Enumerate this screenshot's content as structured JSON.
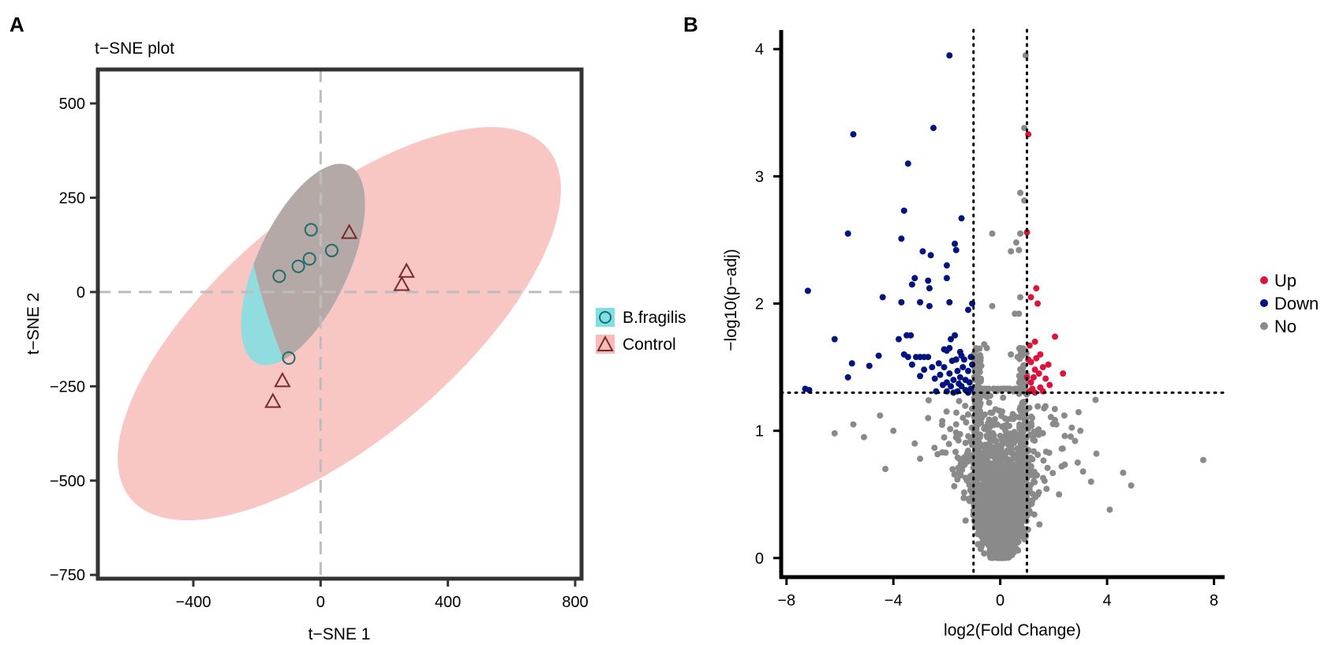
{
  "panel_a": {
    "letter": "A"
  },
  "panel_b": {
    "letter": "B"
  },
  "chart_data": [
    {
      "type": "scatter",
      "title": "t−SNE plot",
      "xlabel": "t−SNE 1",
      "ylabel": "t−SNE 2",
      "xlim": [
        -700,
        820
      ],
      "ylim": [
        -760,
        590
      ],
      "xticks": [
        -400,
        0,
        400,
        800
      ],
      "xtick_labels": [
        "−400",
        "0",
        "400",
        "800"
      ],
      "yticks": [
        500,
        250,
        0,
        -250,
        -500,
        -750
      ],
      "ytick_labels": [
        "500",
        "250",
        "0",
        "−250",
        "−500",
        "−750"
      ],
      "reference_lines": {
        "x": 0,
        "y": 0
      },
      "legend": {
        "position": "right",
        "entries": [
          "B.fragilis",
          "Control"
        ]
      },
      "series": [
        {
          "name": "B.fragilis",
          "marker": "circle",
          "color": "#1f6b6b",
          "ellipse_color": "#7fdfe3",
          "points": [
            [
              -30,
              165
            ],
            [
              -130,
              42
            ],
            [
              -70,
              68
            ],
            [
              -35,
              88
            ],
            [
              35,
              110
            ],
            [
              -100,
              -175
            ]
          ]
        },
        {
          "name": "Control",
          "marker": "triangle",
          "color": "#7a2a2a",
          "ellipse_color": "#f7bcb8",
          "points": [
            [
              90,
              158
            ],
            [
              270,
              55
            ],
            [
              255,
              20
            ],
            [
              -120,
              -235
            ],
            [
              -150,
              -290
            ]
          ]
        }
      ]
    },
    {
      "type": "scatter",
      "xlabel": "log2(Fold Change)",
      "ylabel": "−log10(p−adj)",
      "xlim": [
        -8.2,
        8.4
      ],
      "ylim": [
        -0.15,
        4.15
      ],
      "xticks": [
        -8,
        -4,
        0,
        4,
        8
      ],
      "xtick_labels": [
        "−8",
        "−4",
        "0",
        "4",
        "8"
      ],
      "yticks": [
        0,
        1,
        2,
        3,
        4
      ],
      "ytick_labels": [
        "0",
        "1",
        "2",
        "3",
        "4"
      ],
      "thresholds": {
        "fold_change": [
          -1,
          1
        ],
        "neg_log10_padj": 1.3
      },
      "legend": {
        "position": "right",
        "entries": [
          "Up",
          "Down",
          "No"
        ]
      },
      "colors": {
        "Up": "#dc143c",
        "Down": "#00137f",
        "No": "#8a8a8a"
      },
      "up_points": [
        [
          1.05,
          3.33
        ],
        [
          1.0,
          2.56
        ],
        [
          1.35,
          2.12
        ],
        [
          1.15,
          2.05
        ],
        [
          1.4,
          2.0
        ],
        [
          2.05,
          1.74
        ],
        [
          1.3,
          1.7
        ],
        [
          1.1,
          1.67
        ],
        [
          1.5,
          1.6
        ],
        [
          1.35,
          1.57
        ],
        [
          1.15,
          1.54
        ],
        [
          1.8,
          1.52
        ],
        [
          1.6,
          1.5
        ],
        [
          2.35,
          1.45
        ],
        [
          1.3,
          1.48
        ],
        [
          1.45,
          1.45
        ],
        [
          1.25,
          1.42
        ],
        [
          1.7,
          1.41
        ],
        [
          1.15,
          1.38
        ],
        [
          1.85,
          1.36
        ],
        [
          1.5,
          1.34
        ],
        [
          1.2,
          1.33
        ],
        [
          1.1,
          1.31
        ],
        [
          1.3,
          1.3
        ],
        [
          1.6,
          1.31
        ],
        [
          1.0,
          1.42
        ],
        [
          1.05,
          1.56
        ]
      ],
      "down_points": [
        [
          -1.9,
          3.95
        ],
        [
          -5.5,
          3.33
        ],
        [
          -2.5,
          3.38
        ],
        [
          -3.45,
          3.1
        ],
        [
          -1.45,
          2.67
        ],
        [
          -3.6,
          2.73
        ],
        [
          -5.7,
          2.55
        ],
        [
          -3.7,
          2.51
        ],
        [
          -1.7,
          2.47
        ],
        [
          -1.65,
          2.42
        ],
        [
          -2.9,
          2.41
        ],
        [
          -2.6,
          2.38
        ],
        [
          -2.0,
          2.3
        ],
        [
          -3.2,
          2.2
        ],
        [
          -2.7,
          2.18
        ],
        [
          -2.0,
          2.2
        ],
        [
          -3.3,
          2.15
        ],
        [
          -2.65,
          2.12
        ],
        [
          -4.4,
          2.05
        ],
        [
          -7.2,
          2.1
        ],
        [
          -3.7,
          2.01
        ],
        [
          -1.9,
          2.01
        ],
        [
          -3.0,
          2.01
        ],
        [
          -1.05,
          2.0
        ],
        [
          -2.65,
          1.98
        ],
        [
          -1.2,
          1.95
        ],
        [
          -6.2,
          1.72
        ],
        [
          -3.5,
          1.75
        ],
        [
          -3.35,
          1.75
        ],
        [
          -1.7,
          1.75
        ],
        [
          -1.85,
          1.72
        ],
        [
          -3.8,
          1.72
        ],
        [
          -1.9,
          1.65
        ],
        [
          -2.1,
          1.64
        ],
        [
          -2.0,
          1.63
        ],
        [
          -1.5,
          1.62
        ],
        [
          -1.45,
          1.59
        ],
        [
          -3.6,
          1.6
        ],
        [
          -1.1,
          1.58
        ],
        [
          -2.7,
          1.58
        ],
        [
          -3.45,
          1.58
        ],
        [
          -4.55,
          1.59
        ],
        [
          -3.0,
          1.58
        ],
        [
          -3.15,
          1.58
        ],
        [
          -2.85,
          1.58
        ],
        [
          -1.35,
          1.56
        ],
        [
          -1.65,
          1.56
        ],
        [
          -1.8,
          1.55
        ],
        [
          -5.55,
          1.53
        ],
        [
          -4.9,
          1.51
        ],
        [
          -2.3,
          1.53
        ],
        [
          -3.3,
          1.52
        ],
        [
          -1.05,
          1.52
        ],
        [
          -2.55,
          1.5
        ],
        [
          -2.1,
          1.5
        ],
        [
          -1.4,
          1.5
        ],
        [
          -2.85,
          1.48
        ],
        [
          -1.6,
          1.47
        ],
        [
          -1.2,
          1.47
        ],
        [
          -1.9,
          1.45
        ],
        [
          -2.25,
          1.44
        ],
        [
          -3.0,
          1.43
        ],
        [
          -5.7,
          1.42
        ],
        [
          -1.5,
          1.42
        ],
        [
          -2.45,
          1.41
        ],
        [
          -1.75,
          1.4
        ],
        [
          -1.3,
          1.4
        ],
        [
          -2.0,
          1.38
        ],
        [
          -1.55,
          1.37
        ],
        [
          -1.15,
          1.38
        ],
        [
          -2.15,
          1.36
        ],
        [
          -1.85,
          1.35
        ],
        [
          -1.45,
          1.35
        ],
        [
          -7.3,
          1.33
        ],
        [
          -7.15,
          1.32
        ],
        [
          -1.3,
          1.32
        ],
        [
          -1.1,
          1.33
        ],
        [
          -1.6,
          1.31
        ],
        [
          -2.0,
          1.31
        ],
        [
          -2.4,
          1.31
        ],
        [
          -1.75,
          1.3
        ],
        [
          -1.2,
          1.3
        ]
      ],
      "no_points_notable": [
        [
          0.95,
          3.95
        ],
        [
          0.9,
          3.38
        ],
        [
          0.75,
          2.87
        ],
        [
          0.9,
          2.81
        ],
        [
          -0.3,
          2.55
        ],
        [
          0.75,
          2.55
        ],
        [
          0.6,
          2.48
        ],
        [
          0.7,
          2.42
        ],
        [
          0.4,
          2.41
        ],
        [
          0.75,
          2.05
        ],
        [
          -0.3,
          1.98
        ],
        [
          0.7,
          1.92
        ],
        [
          0.55,
          1.92
        ],
        [
          -0.6,
          1.68
        ],
        [
          -0.5,
          1.65
        ],
        [
          0.4,
          1.6
        ],
        [
          0.75,
          1.65
        ],
        [
          0.65,
          1.58
        ],
        [
          -4.3,
          0.7
        ],
        [
          -2.7,
          1.1
        ],
        [
          -5.5,
          1.05
        ],
        [
          -4.5,
          1.12
        ],
        [
          -6.2,
          0.98
        ],
        [
          -5.1,
          0.95
        ],
        [
          -4.0,
          1.0
        ],
        [
          -3.2,
          0.9
        ],
        [
          -3.0,
          0.78
        ],
        [
          7.6,
          0.77
        ],
        [
          4.9,
          0.57
        ],
        [
          4.1,
          0.38
        ],
        [
          3.4,
          0.6
        ],
        [
          4.6,
          0.67
        ],
        [
          3.6,
          0.82
        ],
        [
          2.9,
          0.75
        ],
        [
          2.3,
          0.72
        ],
        [
          2.8,
          0.92
        ],
        [
          2.4,
          1.12
        ],
        [
          2.1,
          1.05
        ],
        [
          3.1,
          0.68
        ],
        [
          2.2,
          0.5
        ],
        [
          3.0,
          1.0
        ]
      ],
      "no_cloud_count": 2600
    }
  ]
}
